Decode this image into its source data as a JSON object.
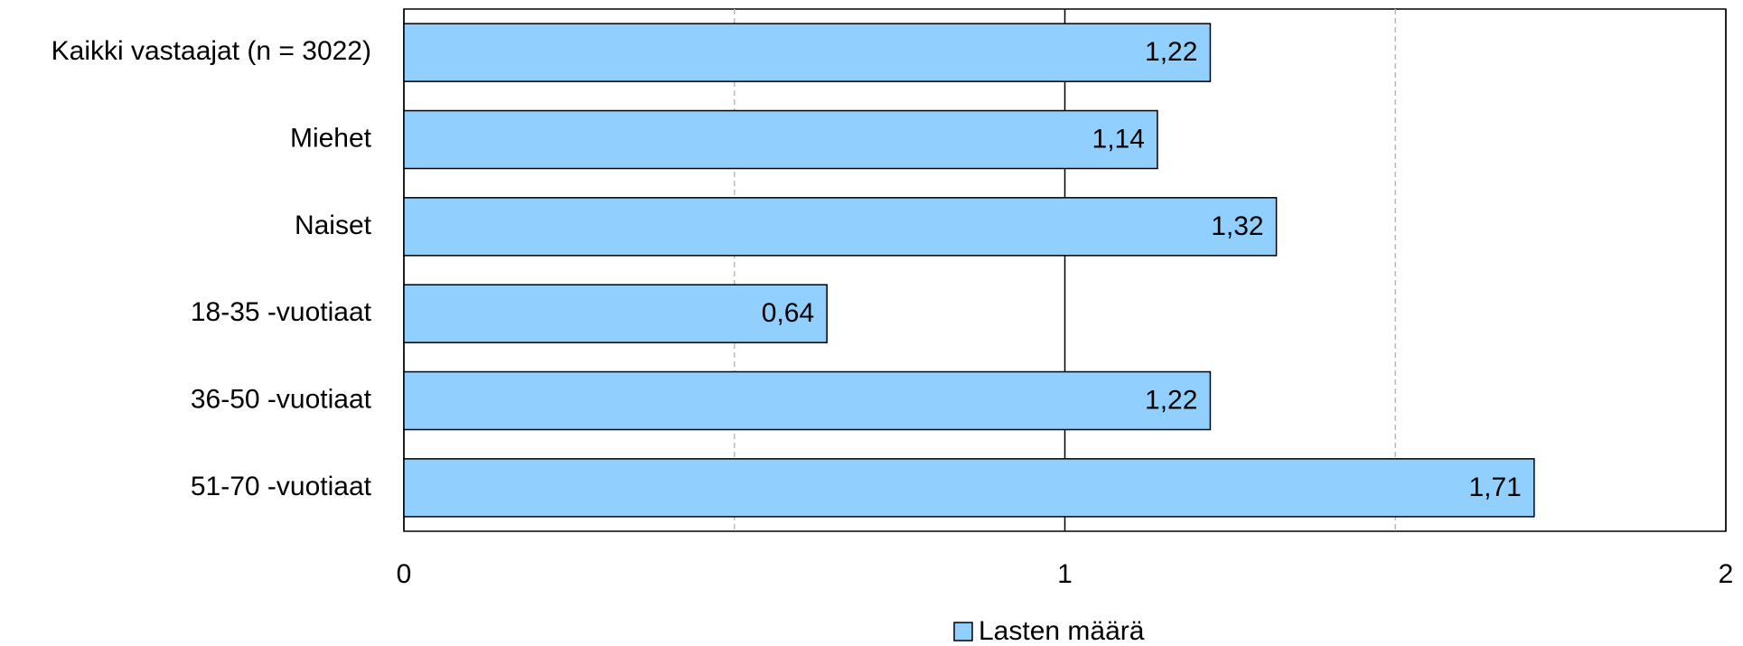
{
  "chart_data": {
    "type": "barh",
    "categories": [
      "Kaikki vastaajat (n = 3022)",
      "Miehet",
      "Naiset",
      "18-35 -vuotiaat",
      "36-50 -vuotiaat",
      "51-70 -vuotiaat"
    ],
    "series": [
      {
        "name": "Lasten määrä",
        "color": "#91cfff",
        "values": [
          1.22,
          1.14,
          1.32,
          0.64,
          1.22,
          1.71
        ],
        "value_labels": [
          "1,22",
          "1,14",
          "1,32",
          "0,64",
          "1,22",
          "1,71"
        ]
      }
    ],
    "xlim": [
      0,
      2
    ],
    "xticks": [
      0,
      1,
      2
    ],
    "minor_xticks": [
      0.5,
      1.5
    ],
    "grid": true,
    "legend": "bottom"
  }
}
